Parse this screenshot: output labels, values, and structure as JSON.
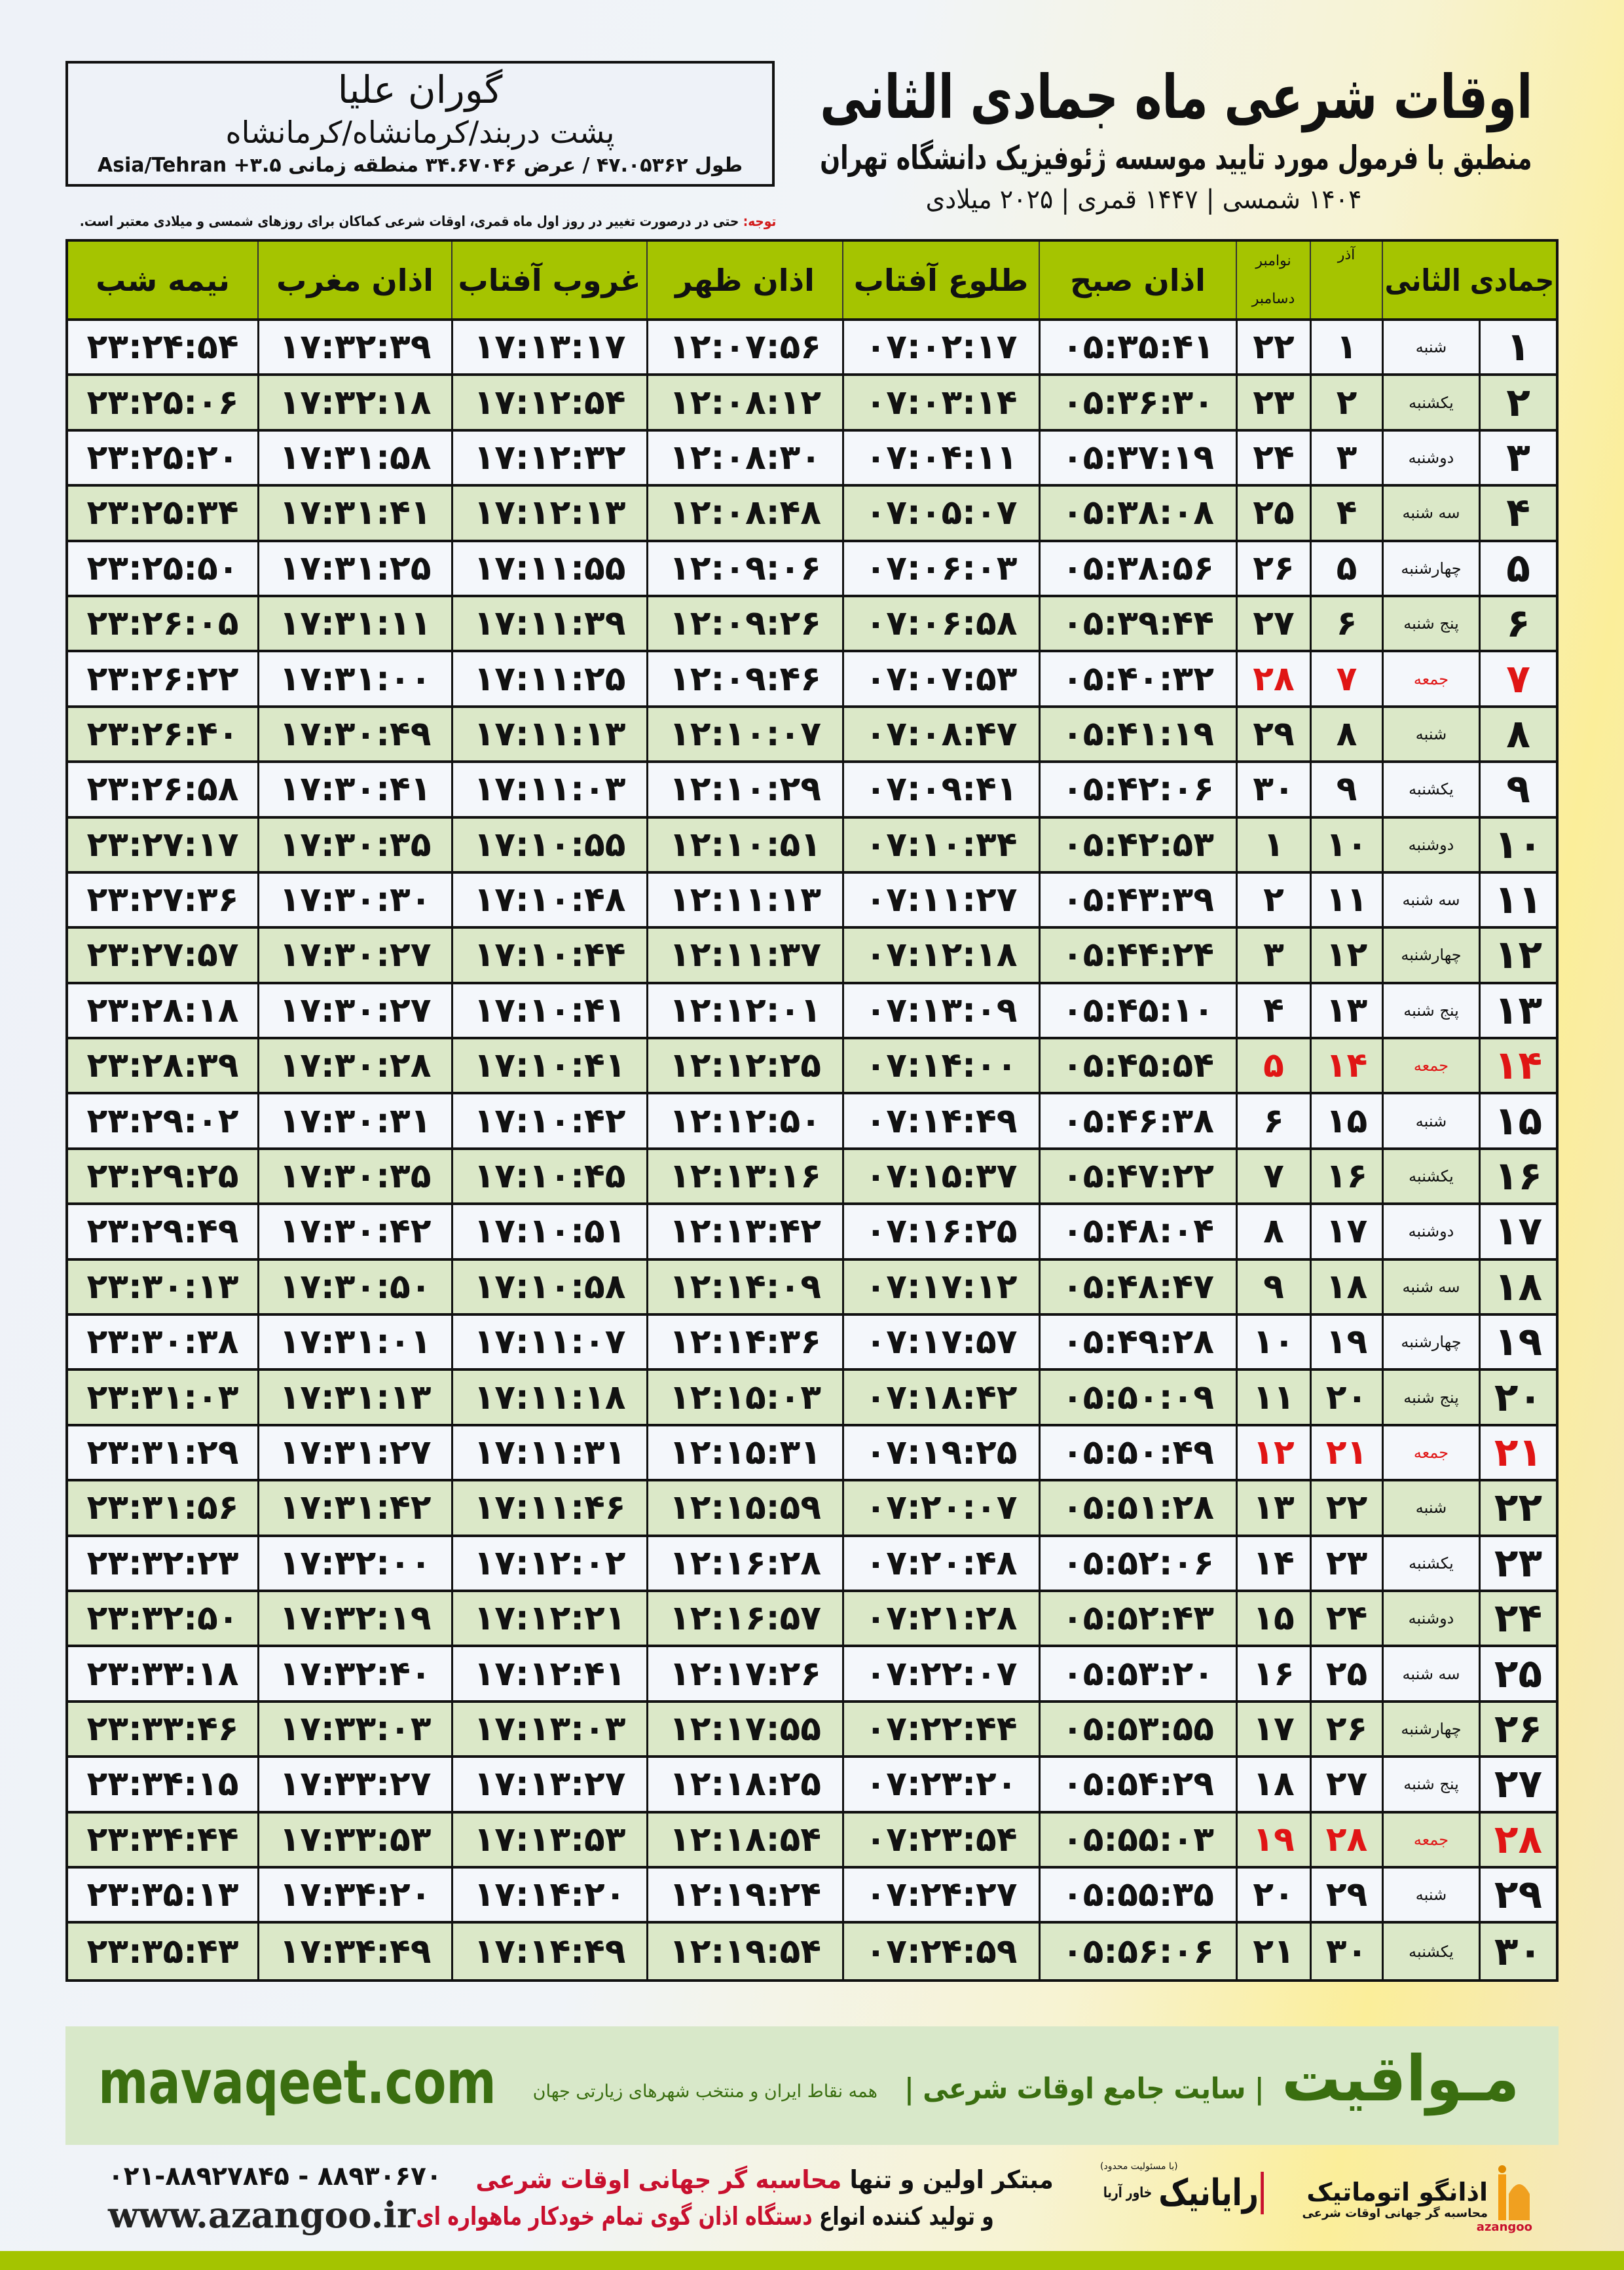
{
  "header": {
    "title": "اوقات شرعی ماه جمادی الثانی",
    "subtitle": "منطبق با فرمول مورد تایید موسسه ژئوفیزیک دانشگاه تهران",
    "years": "۱۴۰۴ شمسی | ۱۴۴۷ قمری | ۲۰۲۵ میلادی"
  },
  "location": {
    "name": "گوران علیا",
    "region": "پشت دربند/کرمانشاه/کرمانشاه",
    "coords": "طول ۴۷.۰۵۳۶۲ / عرض ۳۴.۶۷۰۴۶ منطقه زمانی ۳.۵+ Asia/Tehran"
  },
  "note": {
    "label": "توجه:",
    "text": " حتی در درصورت تغییر در روز اول ماه قمری، اوقات شرعی کماکان برای روزهای شمسی و میلادی معتبر است."
  },
  "table": {
    "headers": {
      "hijri": "جمادی الثانی",
      "azar": "آذر",
      "nov": "نوامبر",
      "dec": "دسامبر",
      "sobh": "اذان صبح",
      "tolu": "طلوع آفتاب",
      "zohr": "اذان ظهر",
      "ghorub": "غروب آفتاب",
      "maghreb": "اذان مغرب",
      "nimeh": "نیمه شب"
    },
    "holiday_color": "#e01515",
    "header_color": "#a5c400",
    "rows": [
      [
        "۱",
        "شنبه",
        "۱",
        "۲۲",
        "۰۵:۳۵:۴۱",
        "۰۷:۰۲:۱۷",
        "۱۲:۰۷:۵۶",
        "۱۷:۱۳:۱۷",
        "۱۷:۳۲:۳۹",
        "۲۳:۲۴:۵۴"
      ],
      [
        "۲",
        "یکشنبه",
        "۲",
        "۲۳",
        "۰۵:۳۶:۳۰",
        "۰۷:۰۳:۱۴",
        "۱۲:۰۸:۱۲",
        "۱۷:۱۲:۵۴",
        "۱۷:۳۲:۱۸",
        "۲۳:۲۵:۰۶"
      ],
      [
        "۳",
        "دوشنبه",
        "۳",
        "۲۴",
        "۰۵:۳۷:۱۹",
        "۰۷:۰۴:۱۱",
        "۱۲:۰۸:۳۰",
        "۱۷:۱۲:۳۲",
        "۱۷:۳۱:۵۸",
        "۲۳:۲۵:۲۰"
      ],
      [
        "۴",
        "سه شنبه",
        "۴",
        "۲۵",
        "۰۵:۳۸:۰۸",
        "۰۷:۰۵:۰۷",
        "۱۲:۰۸:۴۸",
        "۱۷:۱۲:۱۳",
        "۱۷:۳۱:۴۱",
        "۲۳:۲۵:۳۴"
      ],
      [
        "۵",
        "چهارشنبه",
        "۵",
        "۲۶",
        "۰۵:۳۸:۵۶",
        "۰۷:۰۶:۰۳",
        "۱۲:۰۹:۰۶",
        "۱۷:۱۱:۵۵",
        "۱۷:۳۱:۲۵",
        "۲۳:۲۵:۵۰"
      ],
      [
        "۶",
        "پنج شنبه",
        "۶",
        "۲۷",
        "۰۵:۳۹:۴۴",
        "۰۷:۰۶:۵۸",
        "۱۲:۰۹:۲۶",
        "۱۷:۱۱:۳۹",
        "۱۷:۳۱:۱۱",
        "۲۳:۲۶:۰۵"
      ],
      [
        "۷",
        "جمعه",
        "۷",
        "۲۸",
        "۰۵:۴۰:۳۲",
        "۰۷:۰۷:۵۳",
        "۱۲:۰۹:۴۶",
        "۱۷:۱۱:۲۵",
        "۱۷:۳۱:۰۰",
        "۲۳:۲۶:۲۲"
      ],
      [
        "۸",
        "شنبه",
        "۸",
        "۲۹",
        "۰۵:۴۱:۱۹",
        "۰۷:۰۸:۴۷",
        "۱۲:۱۰:۰۷",
        "۱۷:۱۱:۱۳",
        "۱۷:۳۰:۴۹",
        "۲۳:۲۶:۴۰"
      ],
      [
        "۹",
        "یکشنبه",
        "۹",
        "۳۰",
        "۰۵:۴۲:۰۶",
        "۰۷:۰۹:۴۱",
        "۱۲:۱۰:۲۹",
        "۱۷:۱۱:۰۳",
        "۱۷:۳۰:۴۱",
        "۲۳:۲۶:۵۸"
      ],
      [
        "۱۰",
        "دوشنبه",
        "۱۰",
        "۱",
        "۰۵:۴۲:۵۳",
        "۰۷:۱۰:۳۴",
        "۱۲:۱۰:۵۱",
        "۱۷:۱۰:۵۵",
        "۱۷:۳۰:۳۵",
        "۲۳:۲۷:۱۷"
      ],
      [
        "۱۱",
        "سه شنبه",
        "۱۱",
        "۲",
        "۰۵:۴۳:۳۹",
        "۰۷:۱۱:۲۷",
        "۱۲:۱۱:۱۳",
        "۱۷:۱۰:۴۸",
        "۱۷:۳۰:۳۰",
        "۲۳:۲۷:۳۶"
      ],
      [
        "۱۲",
        "چهارشنبه",
        "۱۲",
        "۳",
        "۰۵:۴۴:۲۴",
        "۰۷:۱۲:۱۸",
        "۱۲:۱۱:۳۷",
        "۱۷:۱۰:۴۴",
        "۱۷:۳۰:۲۷",
        "۲۳:۲۷:۵۷"
      ],
      [
        "۱۳",
        "پنج شنبه",
        "۱۳",
        "۴",
        "۰۵:۴۵:۱۰",
        "۰۷:۱۳:۰۹",
        "۱۲:۱۲:۰۱",
        "۱۷:۱۰:۴۱",
        "۱۷:۳۰:۲۷",
        "۲۳:۲۸:۱۸"
      ],
      [
        "۱۴",
        "جمعه",
        "۱۴",
        "۵",
        "۰۵:۴۵:۵۴",
        "۰۷:۱۴:۰۰",
        "۱۲:۱۲:۲۵",
        "۱۷:۱۰:۴۱",
        "۱۷:۳۰:۲۸",
        "۲۳:۲۸:۳۹"
      ],
      [
        "۱۵",
        "شنبه",
        "۱۵",
        "۶",
        "۰۵:۴۶:۳۸",
        "۰۷:۱۴:۴۹",
        "۱۲:۱۲:۵۰",
        "۱۷:۱۰:۴۲",
        "۱۷:۳۰:۳۱",
        "۲۳:۲۹:۰۲"
      ],
      [
        "۱۶",
        "یکشنبه",
        "۱۶",
        "۷",
        "۰۵:۴۷:۲۲",
        "۰۷:۱۵:۳۷",
        "۱۲:۱۳:۱۶",
        "۱۷:۱۰:۴۵",
        "۱۷:۳۰:۳۵",
        "۲۳:۲۹:۲۵"
      ],
      [
        "۱۷",
        "دوشنبه",
        "۱۷",
        "۸",
        "۰۵:۴۸:۰۴",
        "۰۷:۱۶:۲۵",
        "۱۲:۱۳:۴۲",
        "۱۷:۱۰:۵۱",
        "۱۷:۳۰:۴۲",
        "۲۳:۲۹:۴۹"
      ],
      [
        "۱۸",
        "سه شنبه",
        "۱۸",
        "۹",
        "۰۵:۴۸:۴۷",
        "۰۷:۱۷:۱۲",
        "۱۲:۱۴:۰۹",
        "۱۷:۱۰:۵۸",
        "۱۷:۳۰:۵۰",
        "۲۳:۳۰:۱۳"
      ],
      [
        "۱۹",
        "چهارشنبه",
        "۱۹",
        "۱۰",
        "۰۵:۴۹:۲۸",
        "۰۷:۱۷:۵۷",
        "۱۲:۱۴:۳۶",
        "۱۷:۱۱:۰۷",
        "۱۷:۳۱:۰۱",
        "۲۳:۳۰:۳۸"
      ],
      [
        "۲۰",
        "پنج شنبه",
        "۲۰",
        "۱۱",
        "۰۵:۵۰:۰۹",
        "۰۷:۱۸:۴۲",
        "۱۲:۱۵:۰۳",
        "۱۷:۱۱:۱۸",
        "۱۷:۳۱:۱۳",
        "۲۳:۳۱:۰۳"
      ],
      [
        "۲۱",
        "جمعه",
        "۲۱",
        "۱۲",
        "۰۵:۵۰:۴۹",
        "۰۷:۱۹:۲۵",
        "۱۲:۱۵:۳۱",
        "۱۷:۱۱:۳۱",
        "۱۷:۳۱:۲۷",
        "۲۳:۳۱:۲۹"
      ],
      [
        "۲۲",
        "شنبه",
        "۲۲",
        "۱۳",
        "۰۵:۵۱:۲۸",
        "۰۷:۲۰:۰۷",
        "۱۲:۱۵:۵۹",
        "۱۷:۱۱:۴۶",
        "۱۷:۳۱:۴۲",
        "۲۳:۳۱:۵۶"
      ],
      [
        "۲۳",
        "یکشنبه",
        "۲۳",
        "۱۴",
        "۰۵:۵۲:۰۶",
        "۰۷:۲۰:۴۸",
        "۱۲:۱۶:۲۸",
        "۱۷:۱۲:۰۲",
        "۱۷:۳۲:۰۰",
        "۲۳:۳۲:۲۳"
      ],
      [
        "۲۴",
        "دوشنبه",
        "۲۴",
        "۱۵",
        "۰۵:۵۲:۴۳",
        "۰۷:۲۱:۲۸",
        "۱۲:۱۶:۵۷",
        "۱۷:۱۲:۲۱",
        "۱۷:۳۲:۱۹",
        "۲۳:۳۲:۵۰"
      ],
      [
        "۲۵",
        "سه شنبه",
        "۲۵",
        "۱۶",
        "۰۵:۵۳:۲۰",
        "۰۷:۲۲:۰۷",
        "۱۲:۱۷:۲۶",
        "۱۷:۱۲:۴۱",
        "۱۷:۳۲:۴۰",
        "۲۳:۳۳:۱۸"
      ],
      [
        "۲۶",
        "چهارشنبه",
        "۲۶",
        "۱۷",
        "۰۵:۵۳:۵۵",
        "۰۷:۲۲:۴۴",
        "۱۲:۱۷:۵۵",
        "۱۷:۱۳:۰۳",
        "۱۷:۳۳:۰۳",
        "۲۳:۳۳:۴۶"
      ],
      [
        "۲۷",
        "پنج شنبه",
        "۲۷",
        "۱۸",
        "۰۵:۵۴:۲۹",
        "۰۷:۲۳:۲۰",
        "۱۲:۱۸:۲۵",
        "۱۷:۱۳:۲۷",
        "۱۷:۳۳:۲۷",
        "۲۳:۳۴:۱۵"
      ],
      [
        "۲۸",
        "جمعه",
        "۲۸",
        "۱۹",
        "۰۵:۵۵:۰۳",
        "۰۷:۲۳:۵۴",
        "۱۲:۱۸:۵۴",
        "۱۷:۱۳:۵۳",
        "۱۷:۳۳:۵۳",
        "۲۳:۳۴:۴۴"
      ],
      [
        "۲۹",
        "شنبه",
        "۲۹",
        "۲۰",
        "۰۵:۵۵:۳۵",
        "۰۷:۲۴:۲۷",
        "۱۲:۱۹:۲۴",
        "۱۷:۱۴:۲۰",
        "۱۷:۳۴:۲۰",
        "۲۳:۳۵:۱۳"
      ],
      [
        "۳۰",
        "یکشنبه",
        "۳۰",
        "۲۱",
        "۰۵:۵۶:۰۶",
        "۰۷:۲۴:۵۹",
        "۱۲:۱۹:۵۴",
        "۱۷:۱۴:۴۹",
        "۱۷:۳۴:۴۹",
        "۲۳:۳۵:۴۳"
      ]
    ]
  },
  "banner": {
    "site": "mavaqeet.com",
    "brand": "مـواقیت",
    "tagline": "| سایت جامع اوقات شرعی |",
    "tagline2": "همه نقاط ایران و منتخب شهرهای زیارتی جهان",
    "brand_color": "#3a6e10"
  },
  "footer": {
    "phone": "۰۲۱-۸۸۹۲۷۸۴۵ - ۸۸۹۳۰۶۷۰",
    "www": "www.azangoo.ir",
    "line1_a": "مبتکر اولین و تنها ",
    "line1_b": "محاسبه گر جهانی اوقات شرعی",
    "line2_a": "و تولید کننده انواع ",
    "line2_b": "دستگاه اذان گوی تمام خودکار ماهواره ای",
    "raya_note": "(با مسئولیت محدود)",
    "raya_name": "رایانیک",
    "raya_sub": "خاور آریا",
    "azangoo_name": "اذانگو اتوماتیک",
    "azangoo_sub": "محاسبه گر جهانی اوقات شرعی",
    "azangoo_latin": "azangoo"
  }
}
